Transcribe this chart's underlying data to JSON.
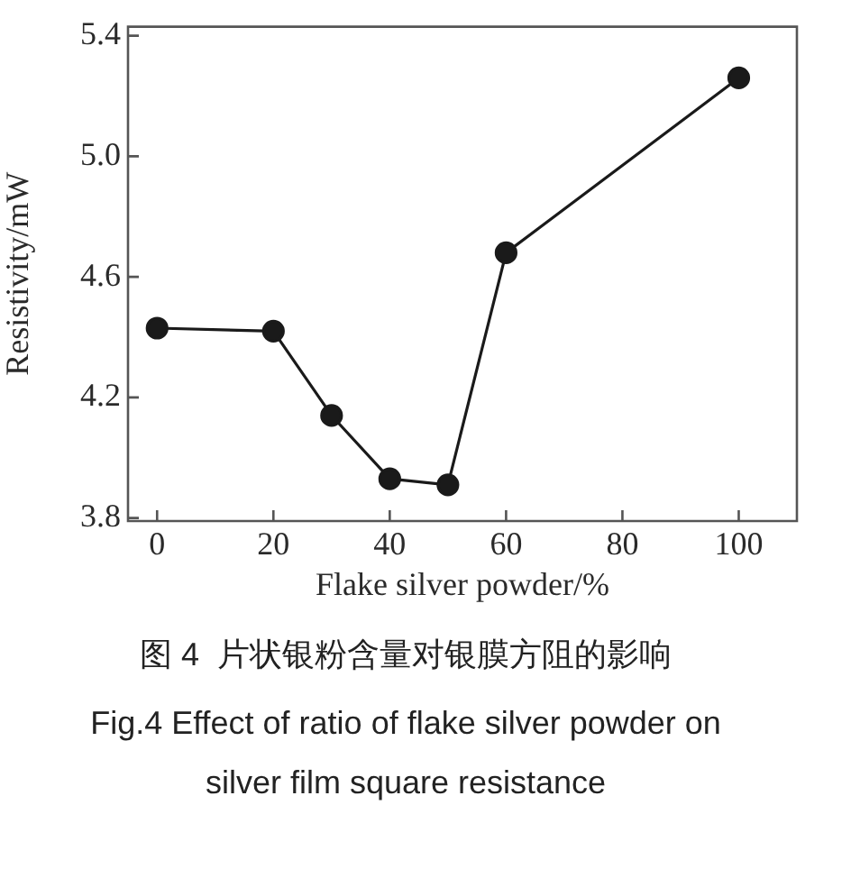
{
  "chart_data": {
    "type": "line",
    "xlabel": "Flake silver powder/%",
    "ylabel": "Resistivity/mW",
    "x": [
      0,
      20,
      30,
      40,
      50,
      60,
      100
    ],
    "series": [
      {
        "color": "#1a1a1a",
        "values": [
          4.43,
          4.42,
          4.14,
          3.93,
          3.91,
          4.68,
          5.26
        ]
      }
    ],
    "xlim": [
      -5,
      110
    ],
    "xticks": [
      0,
      20,
      40,
      60,
      80,
      100
    ],
    "ylim": [
      3.79,
      5.43
    ],
    "yticks": [
      3.8,
      4.2,
      4.6,
      {
        "value": 5.0,
        "label": "5.0"
      },
      5.4
    ],
    "marker": "circle",
    "line_style": "solid",
    "annotations": [
      "图 4  片状银粉含量对银膜方阻的影响",
      "Fig.4 Effect of ratio of flake silver powder on silver film square resistance"
    ]
  }
}
